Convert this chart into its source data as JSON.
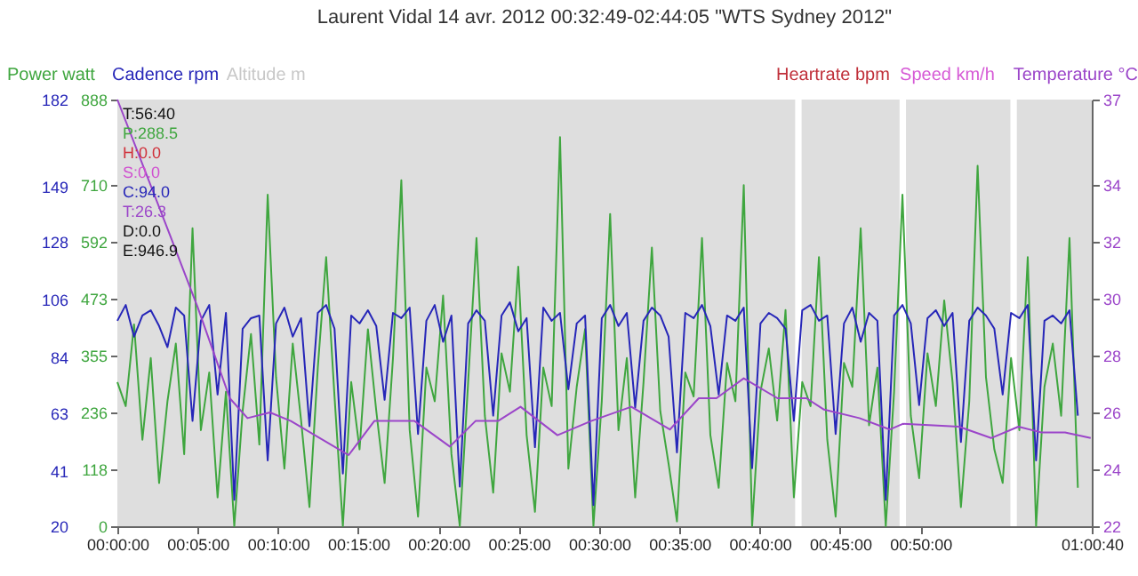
{
  "chart_data": {
    "type": "line",
    "title": "Laurent Vidal 14 avr. 2012 00:32:49-02:44:05 \"WTS Sydney 2012\"",
    "annotations": [
      "Altitude m",
      "Heartrate bpm",
      "Speed km/h",
      "T:56:40",
      "P:288.5",
      "H:0.0",
      "S:0.0",
      "C:94.0",
      "T:26.3",
      "D:0.0",
      "E:946.9"
    ],
    "x": [
      0,
      0.52,
      1.04,
      1.56,
      2.08,
      2.6,
      3.12,
      3.64,
      4.16,
      4.68,
      5.2,
      5.72,
      6.24,
      6.76,
      7.28,
      7.8,
      8.32,
      8.84,
      9.36,
      9.88,
      10.4,
      10.92,
      11.44,
      11.96,
      12.48,
      13,
      13.52,
      14.04,
      14.56,
      15.08,
      15.6,
      16.12,
      16.64,
      17.16,
      17.68,
      18.2,
      18.72,
      19.24,
      19.76,
      20.28,
      20.8,
      21.32,
      21.84,
      22.36,
      22.88,
      23.4,
      23.92,
      24.44,
      24.96,
      25.48,
      26,
      26.52,
      27.04,
      27.56,
      28.08,
      28.6,
      29.12,
      29.64,
      30.16,
      30.68,
      31.2,
      31.72,
      32.24,
      32.76,
      33.28,
      33.8,
      34.32,
      34.84,
      35.36,
      35.88,
      36.4,
      36.92,
      37.44,
      37.96,
      38.48,
      39,
      39.52,
      40.04,
      40.56,
      41.08,
      41.6,
      42.12,
      42.64,
      43.16,
      43.68,
      44.2,
      44.72,
      45.24,
      45.76,
      46.28,
      46.8,
      47.32,
      47.84,
      48.36,
      48.88,
      49.4,
      49.92,
      50.44,
      50.96,
      51.48,
      52,
      52.52,
      53.04,
      53.56,
      54.08,
      54.6,
      55.12,
      55.64,
      56.16,
      56.68,
      57.2,
      57.72,
      58.24,
      58.76,
      59.28,
      59.8
    ],
    "series": [
      {
        "name": "Power watt",
        "color": "#3fa63f",
        "values": [
          300,
          250,
          420,
          180,
          350,
          90,
          260,
          380,
          150,
          620,
          200,
          320,
          60,
          280,
          0,
          240,
          400,
          170,
          690,
          310,
          120,
          380,
          220,
          40,
          330,
          560,
          270,
          0,
          300,
          160,
          410,
          240,
          90,
          350,
          720,
          200,
          20,
          330,
          260,
          480,
          150,
          0,
          300,
          600,
          230,
          70,
          360,
          280,
          540,
          190,
          30,
          330,
          250,
          810,
          120,
          290,
          410,
          0,
          260,
          650,
          200,
          350,
          60,
          300,
          580,
          240,
          130,
          10,
          320,
          270,
          600,
          190,
          80,
          340,
          260,
          710,
          0,
          280,
          370,
          220,
          450,
          60,
          300,
          250,
          560,
          180,
          20,
          340,
          290,
          620,
          210,
          330,
          0,
          280,
          690,
          230,
          100,
          360,
          250,
          470,
          300,
          40,
          260,
          750,
          310,
          160,
          90,
          350,
          200,
          560,
          0,
          290,
          380,
          230,
          600,
          80
        ]
      },
      {
        "name": "Cadence rpm",
        "color": "#2626b8",
        "axis": "y3",
        "values": [
          98,
          104,
          92,
          100,
          102,
          96,
          88,
          103,
          100,
          60,
          98,
          104,
          70,
          101,
          30,
          95,
          99,
          100,
          45,
          97,
          103,
          92,
          99,
          58,
          101,
          104,
          95,
          40,
          100,
          97,
          102,
          96,
          68,
          101,
          99,
          103,
          55,
          98,
          104,
          90,
          100,
          35,
          97,
          102,
          98,
          62,
          100,
          105,
          94,
          99,
          50,
          103,
          98,
          101,
          72,
          97,
          100,
          28,
          99,
          104,
          96,
          101,
          65,
          98,
          103,
          100,
          92,
          48,
          101,
          99,
          104,
          96,
          70,
          100,
          98,
          103,
          42,
          97,
          101,
          99,
          95,
          60,
          102,
          104,
          98,
          100,
          55,
          97,
          103,
          90,
          101,
          98,
          30,
          100,
          104,
          97,
          66,
          99,
          102,
          96,
          101,
          52,
          98,
          103,
          100,
          95,
          70,
          101,
          99,
          104,
          45,
          98,
          100,
          97,
          102,
          62
        ]
      },
      {
        "name": "Temperature °C",
        "color": "#9b45c9",
        "axis": "y2",
        "x": [
          0,
          3.3,
          5.0,
          7.0,
          8.1,
          9.5,
          10.8,
          14.4,
          16.0,
          18.5,
          20.7,
          22.3,
          23.7,
          25.1,
          27.4,
          29.5,
          32.0,
          34.4,
          36.2,
          37.3,
          39.0,
          41.1,
          42.9,
          44.0,
          46.2,
          48.1,
          48.9,
          52.4,
          54.4,
          56.1,
          57.5,
          59.0,
          60.6
        ],
        "values": [
          37.0,
          32.2,
          29.7,
          26.5,
          25.8,
          26.0,
          25.7,
          24.5,
          25.7,
          25.7,
          24.8,
          25.7,
          25.7,
          26.2,
          25.2,
          25.7,
          26.2,
          25.4,
          26.5,
          26.5,
          27.2,
          26.5,
          26.5,
          26.1,
          25.8,
          25.4,
          25.6,
          25.5,
          25.1,
          25.5,
          25.3,
          25.3,
          25.1
        ]
      }
    ],
    "xlim": [
      0,
      60.667
    ],
    "xticks": [
      {
        "value": 0,
        "label": "00:00:00"
      },
      {
        "value": 5,
        "label": "00:05:00"
      },
      {
        "value": 10,
        "label": "00:10:00"
      },
      {
        "value": 15,
        "label": "00:15:00"
      },
      {
        "value": 20,
        "label": "00:20:00"
      },
      {
        "value": 25,
        "label": "00:25:00"
      },
      {
        "value": 30,
        "label": "00:30:00"
      },
      {
        "value": 35,
        "label": "00:35:00"
      },
      {
        "value": 40,
        "label": "00:40:00"
      },
      {
        "value": 45,
        "label": "00:45:00"
      },
      {
        "value": 50,
        "label": "00:50:00"
      },
      {
        "value": 60.667,
        "label": "01:00:40"
      }
    ],
    "ylim": [
      0,
      888
    ],
    "yticks": [
      0,
      118,
      236,
      355,
      473,
      592,
      710,
      888
    ],
    "y3lim": [
      20,
      182
    ],
    "y3ticks": [
      20,
      41,
      63,
      84,
      106,
      128,
      149,
      182
    ],
    "y2lim": [
      22,
      37
    ],
    "y2ticks": [
      22,
      24,
      26,
      28,
      30,
      32,
      34,
      37
    ],
    "bands": [
      {
        "axis": "x",
        "from": 0,
        "to": 42.2,
        "color": "#dedede"
      },
      {
        "axis": "x",
        "from": 42.6,
        "to": 48.7,
        "color": "#dedede"
      },
      {
        "axis": "x",
        "from": 49.1,
        "to": 55.6,
        "color": "#dedede"
      },
      {
        "axis": "x",
        "from": 56.0,
        "to": 60.667,
        "color": "#dedede"
      }
    ],
    "legend": "top",
    "grid": false
  }
}
